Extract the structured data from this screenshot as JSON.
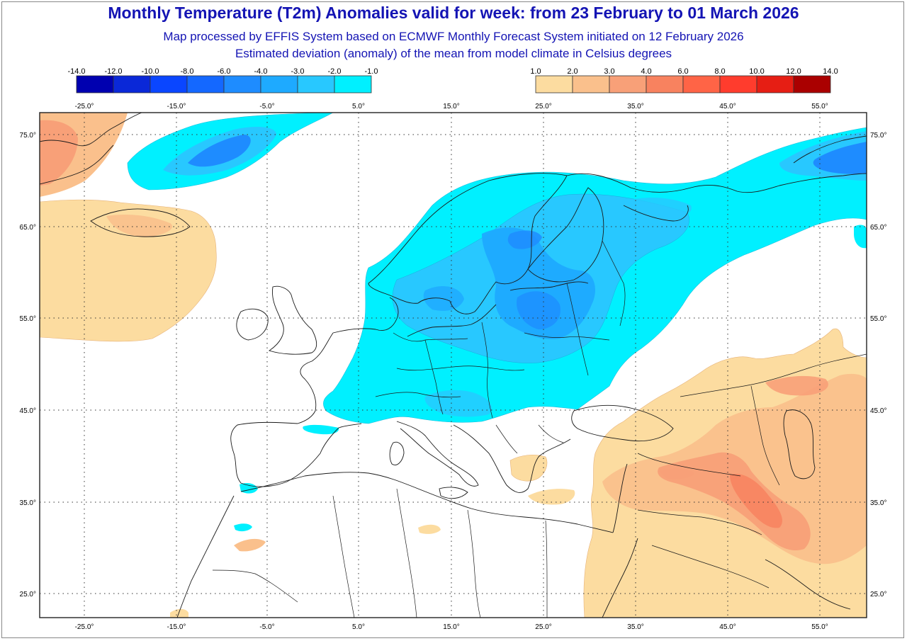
{
  "title": "Monthly Temperature (T2m) Anomalies valid for week: from 23 February to 01 March 2026",
  "subtitle_1": "Map processed by EFFIS System based on ECMWF Monthly Forecast System initiated on 12 February 2026",
  "subtitle_2": "Estimated deviation (anomaly) of the mean from model climate in Celsius degrees",
  "legend_cold": {
    "labels": [
      "-14.0",
      "-12.0",
      "-10.0",
      "-8.0",
      "-6.0",
      "-4.0",
      "-3.0",
      "-2.0",
      "-1.0"
    ],
    "colors": [
      "#0000b0",
      "#0a28d8",
      "#0a46ff",
      "#1468ff",
      "#1e8cff",
      "#1eaaff",
      "#28c8ff",
      "#00f0ff"
    ]
  },
  "legend_warm": {
    "labels": [
      "1.0",
      "2.0",
      "3.0",
      "4.0",
      "6.0",
      "8.0",
      "10.0",
      "12.0",
      "14.0"
    ],
    "colors": [
      "#fcdca0",
      "#fac08c",
      "#f8a078",
      "#f8825f",
      "#ff6446",
      "#ff3c2d",
      "#e61e14",
      "#aa0000"
    ]
  },
  "longitude_labels": [
    "-25.0°",
    "-15.0°",
    "-5.0°",
    "5.0°",
    "15.0°",
    "25.0°",
    "35.0°",
    "45.0°",
    "55.0°"
  ],
  "latitude_labels": [
    "75.0°",
    "65.0°",
    "55.0°",
    "45.0°",
    "35.0°",
    "25.0°"
  ]
}
